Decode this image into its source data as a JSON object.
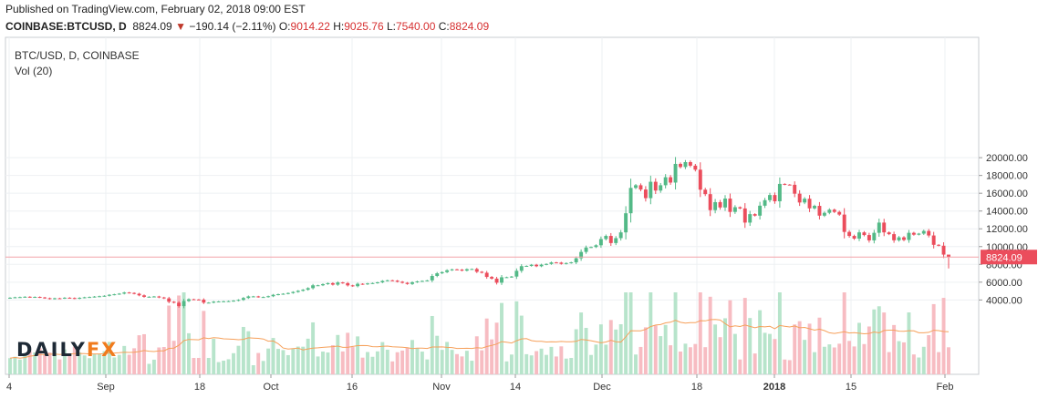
{
  "header": {
    "published": "Published on TradingView.com, February 02, 2018 09:00 EST",
    "symbol": "COINBASE:BTCUSD, D",
    "last": "8824.09",
    "change": "−190.14 (−2.11%)",
    "o_label": "O:",
    "o": "9014.22",
    "h_label": "H:",
    "h": "9025.76",
    "l_label": "L:",
    "l": "7540.00",
    "c_label": "C:",
    "c": "8824.09"
  },
  "legend": {
    "line1": "BTC/USD, D, COINBASE",
    "line2": "Vol (20)"
  },
  "logo": {
    "part1": "DAILY",
    "part2": "FX"
  },
  "colors": {
    "up": "#53b987",
    "down": "#eb4d5c",
    "vol_up": "#b7e4cb",
    "vol_down": "#f7bcc2",
    "ma": "#f6a05a",
    "price_line": "#f4a3a9",
    "grid": "#eef0f3"
  },
  "chart_data": {
    "type": "candlestick",
    "title": "BTC/USD, D, COINBASE",
    "y_axis": {
      "ticks": [
        4000,
        6000,
        8000,
        10000,
        12000,
        14000,
        16000,
        18000,
        20000
      ],
      "tick_labels": [
        "4000.00",
        "6000.00",
        "8000.00",
        "10000.00",
        "12000.00",
        "14000.00",
        "16000.00",
        "18000.00",
        "20000.00"
      ]
    },
    "x_axis": {
      "labels": [
        "4",
        "Sep",
        "18",
        "Oct",
        "16",
        "Nov",
        "14",
        "Dec",
        "18",
        "2018",
        "15",
        "Feb"
      ]
    },
    "last_price": 8824.09,
    "last_price_label": "8824.09",
    "start_close": 4200,
    "closes": [
      4250,
      4300,
      4320,
      4360,
      4300,
      4340,
      4280,
      4200,
      4120,
      4190,
      4180,
      4250,
      4220,
      4150,
      4240,
      4300,
      4330,
      4380,
      4420,
      4470,
      4580,
      4640,
      4710,
      4840,
      4790,
      4700,
      4520,
      4350,
      4360,
      4390,
      4280,
      4180,
      3800,
      3690,
      3310,
      3880,
      4080,
      4050,
      4030,
      3700,
      3700,
      3810,
      3830,
      3850,
      3870,
      3920,
      4010,
      4220,
      4400,
      4400,
      4320,
      4330,
      4420,
      4580,
      4650,
      4700,
      4780,
      4900,
      5030,
      5150,
      5330,
      5650,
      5650,
      5780,
      5890,
      5720,
      5970,
      5890,
      5640,
      5550,
      5820,
      5760,
      5860,
      5900,
      5980,
      6140,
      6210,
      6170,
      6050,
      5930,
      5800,
      5990,
      6090,
      6140,
      6200,
      6700,
      7000,
      7130,
      7340,
      7440,
      7410,
      7300,
      7460,
      7480,
      7170,
      7060,
      6590,
      6400,
      5940,
      6550,
      6560,
      6630,
      7280,
      7800,
      7830,
      7960,
      7790,
      7970,
      8050,
      8220,
      8200,
      8060,
      8150,
      8230,
      8690,
      9400,
      9900,
      9950,
      10150,
      10850,
      11200,
      10400,
      10950,
      11600,
      13750,
      16600,
      16900,
      16420,
      15450,
      17290,
      16300,
      16900,
      17800,
      17200,
      19300,
      18950,
      19500,
      19100,
      18650,
      16400,
      15900,
      14100,
      15000,
      14400,
      15400,
      13900,
      14430,
      14290,
      12700,
      13650,
      13480,
      14600,
      15220,
      15800,
      15100,
      17050,
      16970,
      16950,
      15950,
      14960,
      15380,
      14300,
      14580,
      13480,
      13800,
      14150,
      13900,
      13600,
      11650,
      11200,
      10900,
      11600,
      11300,
      10700,
      11550,
      12700,
      11600,
      11400,
      10710,
      11040,
      10750,
      11550,
      11340,
      11460,
      11760,
      11250,
      10200,
      10100,
      9100,
      8824.09
    ],
    "volume_ma_note": "Vol (20)"
  }
}
